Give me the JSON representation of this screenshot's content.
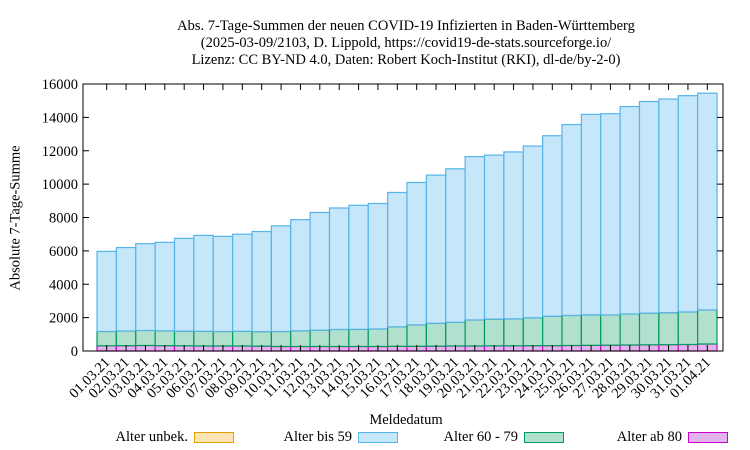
{
  "chart_data": {
    "type": "bar",
    "stacked": true,
    "title": [
      "Abs. 7-Tage-Summen der neuen COVID-19 Infizierten in Baden-Württemberg",
      "(2025-03-09/2103, D. Lippold, https://covid19-de-stats.sourceforge.io/",
      "Lizenz: CC BY-ND 4.0, Daten: Robert Koch-Institut (RKI), dl-de/by-2-0)"
    ],
    "xlabel": "Meldedatum",
    "ylabel": "Absolute 7-Tage-Summe",
    "ylim": [
      0,
      16000
    ],
    "yticks": [
      0,
      2000,
      4000,
      6000,
      8000,
      10000,
      12000,
      14000,
      16000
    ],
    "grid": false,
    "legend_position": "bottom",
    "categories": [
      "01.03.21",
      "02.03.21",
      "03.03.21",
      "04.03.21",
      "05.03.21",
      "06.03.21",
      "07.03.21",
      "08.03.21",
      "09.03.21",
      "10.03.21",
      "11.03.21",
      "12.03.21",
      "13.03.21",
      "14.03.21",
      "15.03.21",
      "16.03.21",
      "17.03.21",
      "18.03.21",
      "19.03.21",
      "20.03.21",
      "21.03.21",
      "22.03.21",
      "23.03.21",
      "24.03.21",
      "25.03.21",
      "26.03.21",
      "27.03.21",
      "28.03.21",
      "29.03.21",
      "30.03.21",
      "31.03.21",
      "01.04.21"
    ],
    "series": [
      {
        "name": "Alter ab 80",
        "color": "#cc00cc",
        "fill": "#e3b4ec",
        "values": [
          310,
          320,
          330,
          320,
          310,
          300,
          300,
          300,
          290,
          270,
          270,
          270,
          270,
          270,
          270,
          280,
          280,
          290,
          300,
          300,
          310,
          310,
          320,
          320,
          330,
          340,
          350,
          360,
          370,
          380,
          390,
          420
        ]
      },
      {
        "name": "Alter 60 - 79",
        "color": "#009a5c",
        "fill": "#b2e0cf",
        "values": [
          860,
          880,
          900,
          890,
          880,
          880,
          870,
          880,
          870,
          900,
          940,
          980,
          1020,
          1030,
          1050,
          1170,
          1290,
          1370,
          1420,
          1560,
          1600,
          1620,
          1670,
          1760,
          1800,
          1830,
          1810,
          1860,
          1900,
          1920,
          1950,
          2040
        ]
      },
      {
        "name": "Alter bis 59",
        "color": "#56b4e9",
        "fill": "#c6e6fa",
        "values": [
          4800,
          5000,
          5200,
          5300,
          5560,
          5750,
          5700,
          5820,
          6000,
          6330,
          6660,
          7050,
          7280,
          7430,
          7520,
          8050,
          8530,
          8880,
          9200,
          9790,
          9830,
          10000,
          10290,
          10820,
          11440,
          12010,
          12060,
          12430,
          12680,
          12800,
          12960,
          12990
        ]
      },
      {
        "name": "Alter unbek.",
        "color": "#e69f00",
        "fill": "#fce4b4",
        "values": [
          0,
          0,
          0,
          0,
          0,
          0,
          0,
          0,
          0,
          0,
          0,
          0,
          0,
          0,
          0,
          0,
          0,
          0,
          0,
          0,
          0,
          0,
          0,
          0,
          0,
          0,
          0,
          0,
          0,
          0,
          0,
          0
        ]
      }
    ],
    "legend_order": [
      "Alter unbek.",
      "Alter bis 59",
      "Alter 60 - 79",
      "Alter ab 80"
    ]
  }
}
